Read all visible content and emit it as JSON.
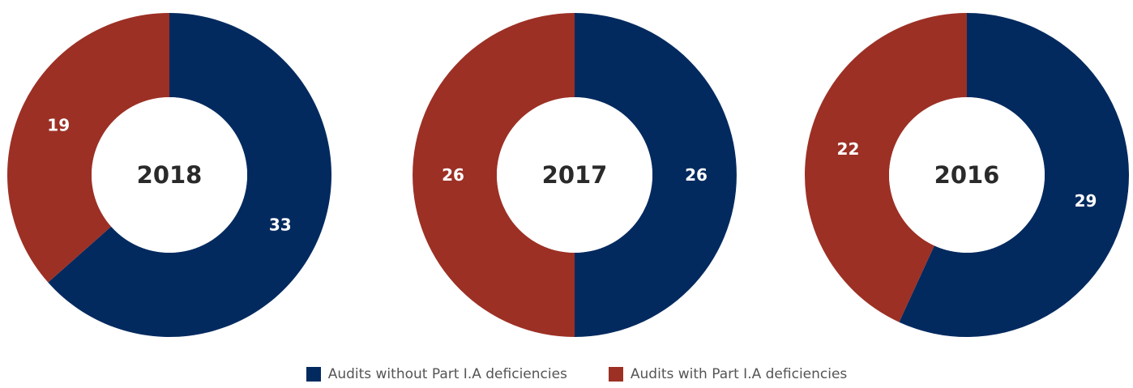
{
  "chart_data": {
    "type": "pie",
    "variant": "donut",
    "colors": {
      "without": "#032a5f",
      "with": "#9c3025"
    },
    "legend": [
      {
        "key": "without",
        "label": "Audits without Part I.A deficiencies",
        "color": "#032a5f"
      },
      {
        "key": "with",
        "label": "Audits with Part I.A deficiencies",
        "color": "#9c3025"
      }
    ],
    "legend_position": "bottom",
    "charts": [
      {
        "title": "2018",
        "slices": [
          {
            "key": "without",
            "value": 33
          },
          {
            "key": "with",
            "value": 19
          }
        ]
      },
      {
        "title": "2017",
        "slices": [
          {
            "key": "without",
            "value": 26
          },
          {
            "key": "with",
            "value": 26
          }
        ]
      },
      {
        "title": "2016",
        "slices": [
          {
            "key": "without",
            "value": 29
          },
          {
            "key": "with",
            "value": 22
          }
        ]
      }
    ]
  }
}
